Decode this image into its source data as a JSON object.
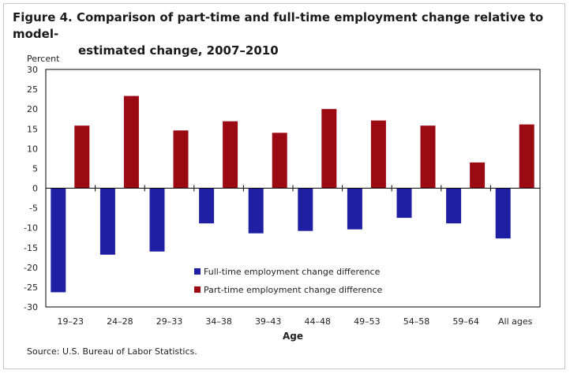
{
  "title_line1": "Figure 4. Comparison of part-time and full-time employment change relative to model-",
  "title_line2": "estimated change, 2007–2010",
  "source": "Source: U.S. Bureau of Labor Statistics.",
  "colors": {
    "full_time": "#1f1fa3",
    "part_time": "#9b0a12",
    "axis": "#000000",
    "plot_border": "#000000"
  },
  "chart_data": {
    "type": "bar",
    "title": "Comparison of part-time and full-time employment change relative to model-estimated change, 2007–2010",
    "xlabel": "Age",
    "ylabel": "Percent",
    "ylim": [
      -30,
      30
    ],
    "yticks": [
      30,
      25,
      20,
      15,
      10,
      5,
      0,
      -5,
      -10,
      -15,
      -20,
      -25,
      -30
    ],
    "grid": false,
    "legend_position": "inside-lower-center",
    "categories": [
      "19–23",
      "24–28",
      "29–33",
      "34–38",
      "39–43",
      "44–48",
      "49–53",
      "54–58",
      "59–64",
      "All ages"
    ],
    "series": [
      {
        "name": "Full-time employment change difference",
        "values": [
          -26.3,
          -16.8,
          -16.0,
          -8.9,
          -11.4,
          -10.8,
          -10.4,
          -7.5,
          -8.9,
          -12.7
        ]
      },
      {
        "name": "Part-time employment change difference",
        "values": [
          15.8,
          23.3,
          14.6,
          16.9,
          14.0,
          20.0,
          17.1,
          15.8,
          6.5,
          16.1
        ]
      }
    ]
  }
}
